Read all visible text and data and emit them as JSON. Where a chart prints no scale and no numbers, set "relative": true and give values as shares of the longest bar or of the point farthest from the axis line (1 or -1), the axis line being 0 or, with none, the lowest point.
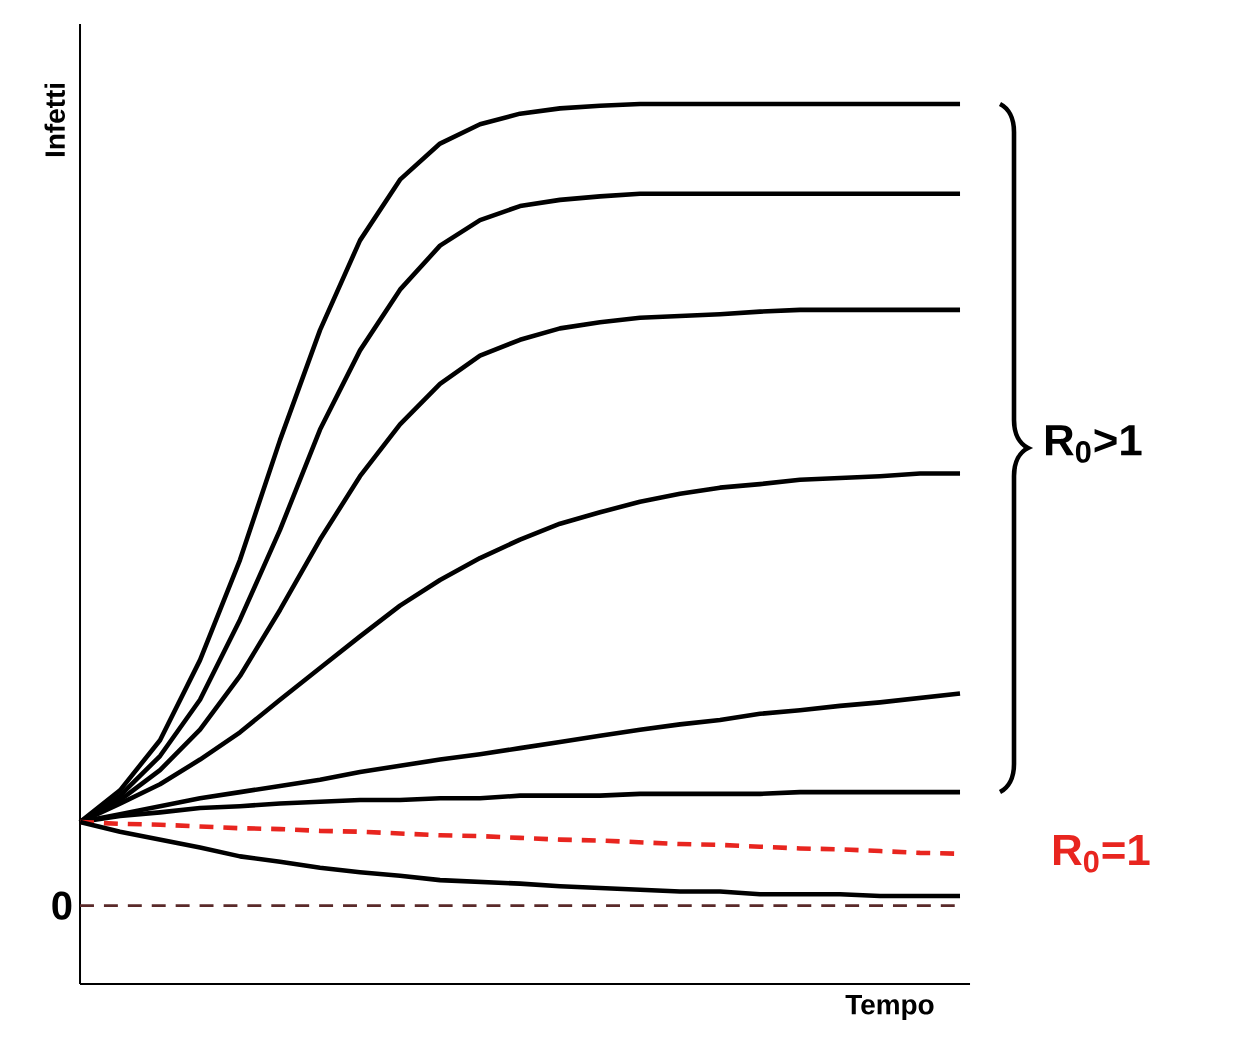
{
  "chart_data": {
    "type": "line",
    "relative": true,
    "xlabel": "Tempo",
    "ylabel": "Infetti",
    "categories": [
      null,
      null,
      null,
      null,
      null,
      null,
      null,
      null,
      null,
      null,
      null,
      null,
      null,
      null,
      null,
      null,
      null,
      null,
      null,
      null,
      null,
      null,
      null
    ],
    "series": [
      {
        "color": "#000000",
        "values": [
          0.184,
          0.22,
          0.277,
          0.368,
          0.482,
          0.618,
          0.743,
          0.845,
          0.914,
          0.955,
          0.977,
          0.989,
          0.995,
          0.998,
          1,
          1,
          1,
          1,
          1,
          1,
          1,
          1,
          1
        ]
      },
      {
        "color": "#000000",
        "values": [
          0.184,
          0.214,
          0.259,
          0.323,
          0.414,
          0.516,
          0.63,
          0.72,
          0.789,
          0.839,
          0.868,
          0.884,
          0.891,
          0.895,
          0.898,
          0.898,
          0.898,
          0.898,
          0.898,
          0.898,
          0.898,
          0.898,
          0.898
        ]
      },
      {
        "color": "#000000",
        "values": [
          0.184,
          0.209,
          0.243,
          0.289,
          0.35,
          0.425,
          0.505,
          0.577,
          0.636,
          0.682,
          0.714,
          0.732,
          0.745,
          0.752,
          0.757,
          0.759,
          0.761,
          0.764,
          0.766,
          0.766,
          0.766,
          0.766,
          0.766
        ]
      },
      {
        "color": "#000000",
        "values": [
          0.184,
          0.205,
          0.227,
          0.255,
          0.286,
          0.323,
          0.359,
          0.395,
          0.43,
          0.459,
          0.484,
          0.505,
          0.523,
          0.536,
          0.548,
          0.557,
          0.564,
          0.568,
          0.573,
          0.575,
          0.577,
          0.58,
          0.58
        ]
      },
      {
        "color": "#000000",
        "values": [
          0.184,
          0.193,
          0.202,
          0.211,
          0.218,
          0.225,
          0.232,
          0.241,
          0.248,
          0.255,
          0.261,
          0.268,
          0.275,
          0.282,
          0.289,
          0.295,
          0.3,
          0.307,
          0.311,
          0.316,
          0.32,
          0.325,
          0.33
        ]
      },
      {
        "color": "#000000",
        "values": [
          0.184,
          0.191,
          0.195,
          0.2,
          0.202,
          0.205,
          0.207,
          0.209,
          0.209,
          0.211,
          0.211,
          0.214,
          0.214,
          0.214,
          0.216,
          0.216,
          0.216,
          0.216,
          0.218,
          0.218,
          0.218,
          0.218,
          0.218
        ]
      },
      {
        "name": "R$_{0}$=1",
        "color": "#e8251f",
        "line_style": "dashed",
        "values": [
          0.184,
          0.182,
          0.181,
          0.179,
          0.177,
          0.176,
          0.174,
          0.173,
          0.171,
          0.169,
          0.168,
          0.166,
          0.164,
          0.163,
          0.161,
          0.159,
          0.158,
          0.156,
          0.154,
          0.153,
          0.151,
          0.149,
          0.148
        ]
      },
      {
        "color": "#000000",
        "values": [
          0.184,
          0.173,
          0.164,
          0.155,
          0.145,
          0.139,
          0.132,
          0.127,
          0.123,
          0.118,
          0.116,
          0.114,
          0.111,
          0.109,
          0.107,
          0.105,
          0.105,
          0.102,
          0.102,
          0.102,
          0.1,
          0.1,
          0.1
        ]
      }
    ],
    "ref_lines": [
      {
        "axis": "y",
        "value": 0.089,
        "label": "0",
        "color": "#5a2a2a",
        "line_style": "dashed"
      }
    ],
    "annotations": [
      "R$_{0}$>1"
    ]
  }
}
